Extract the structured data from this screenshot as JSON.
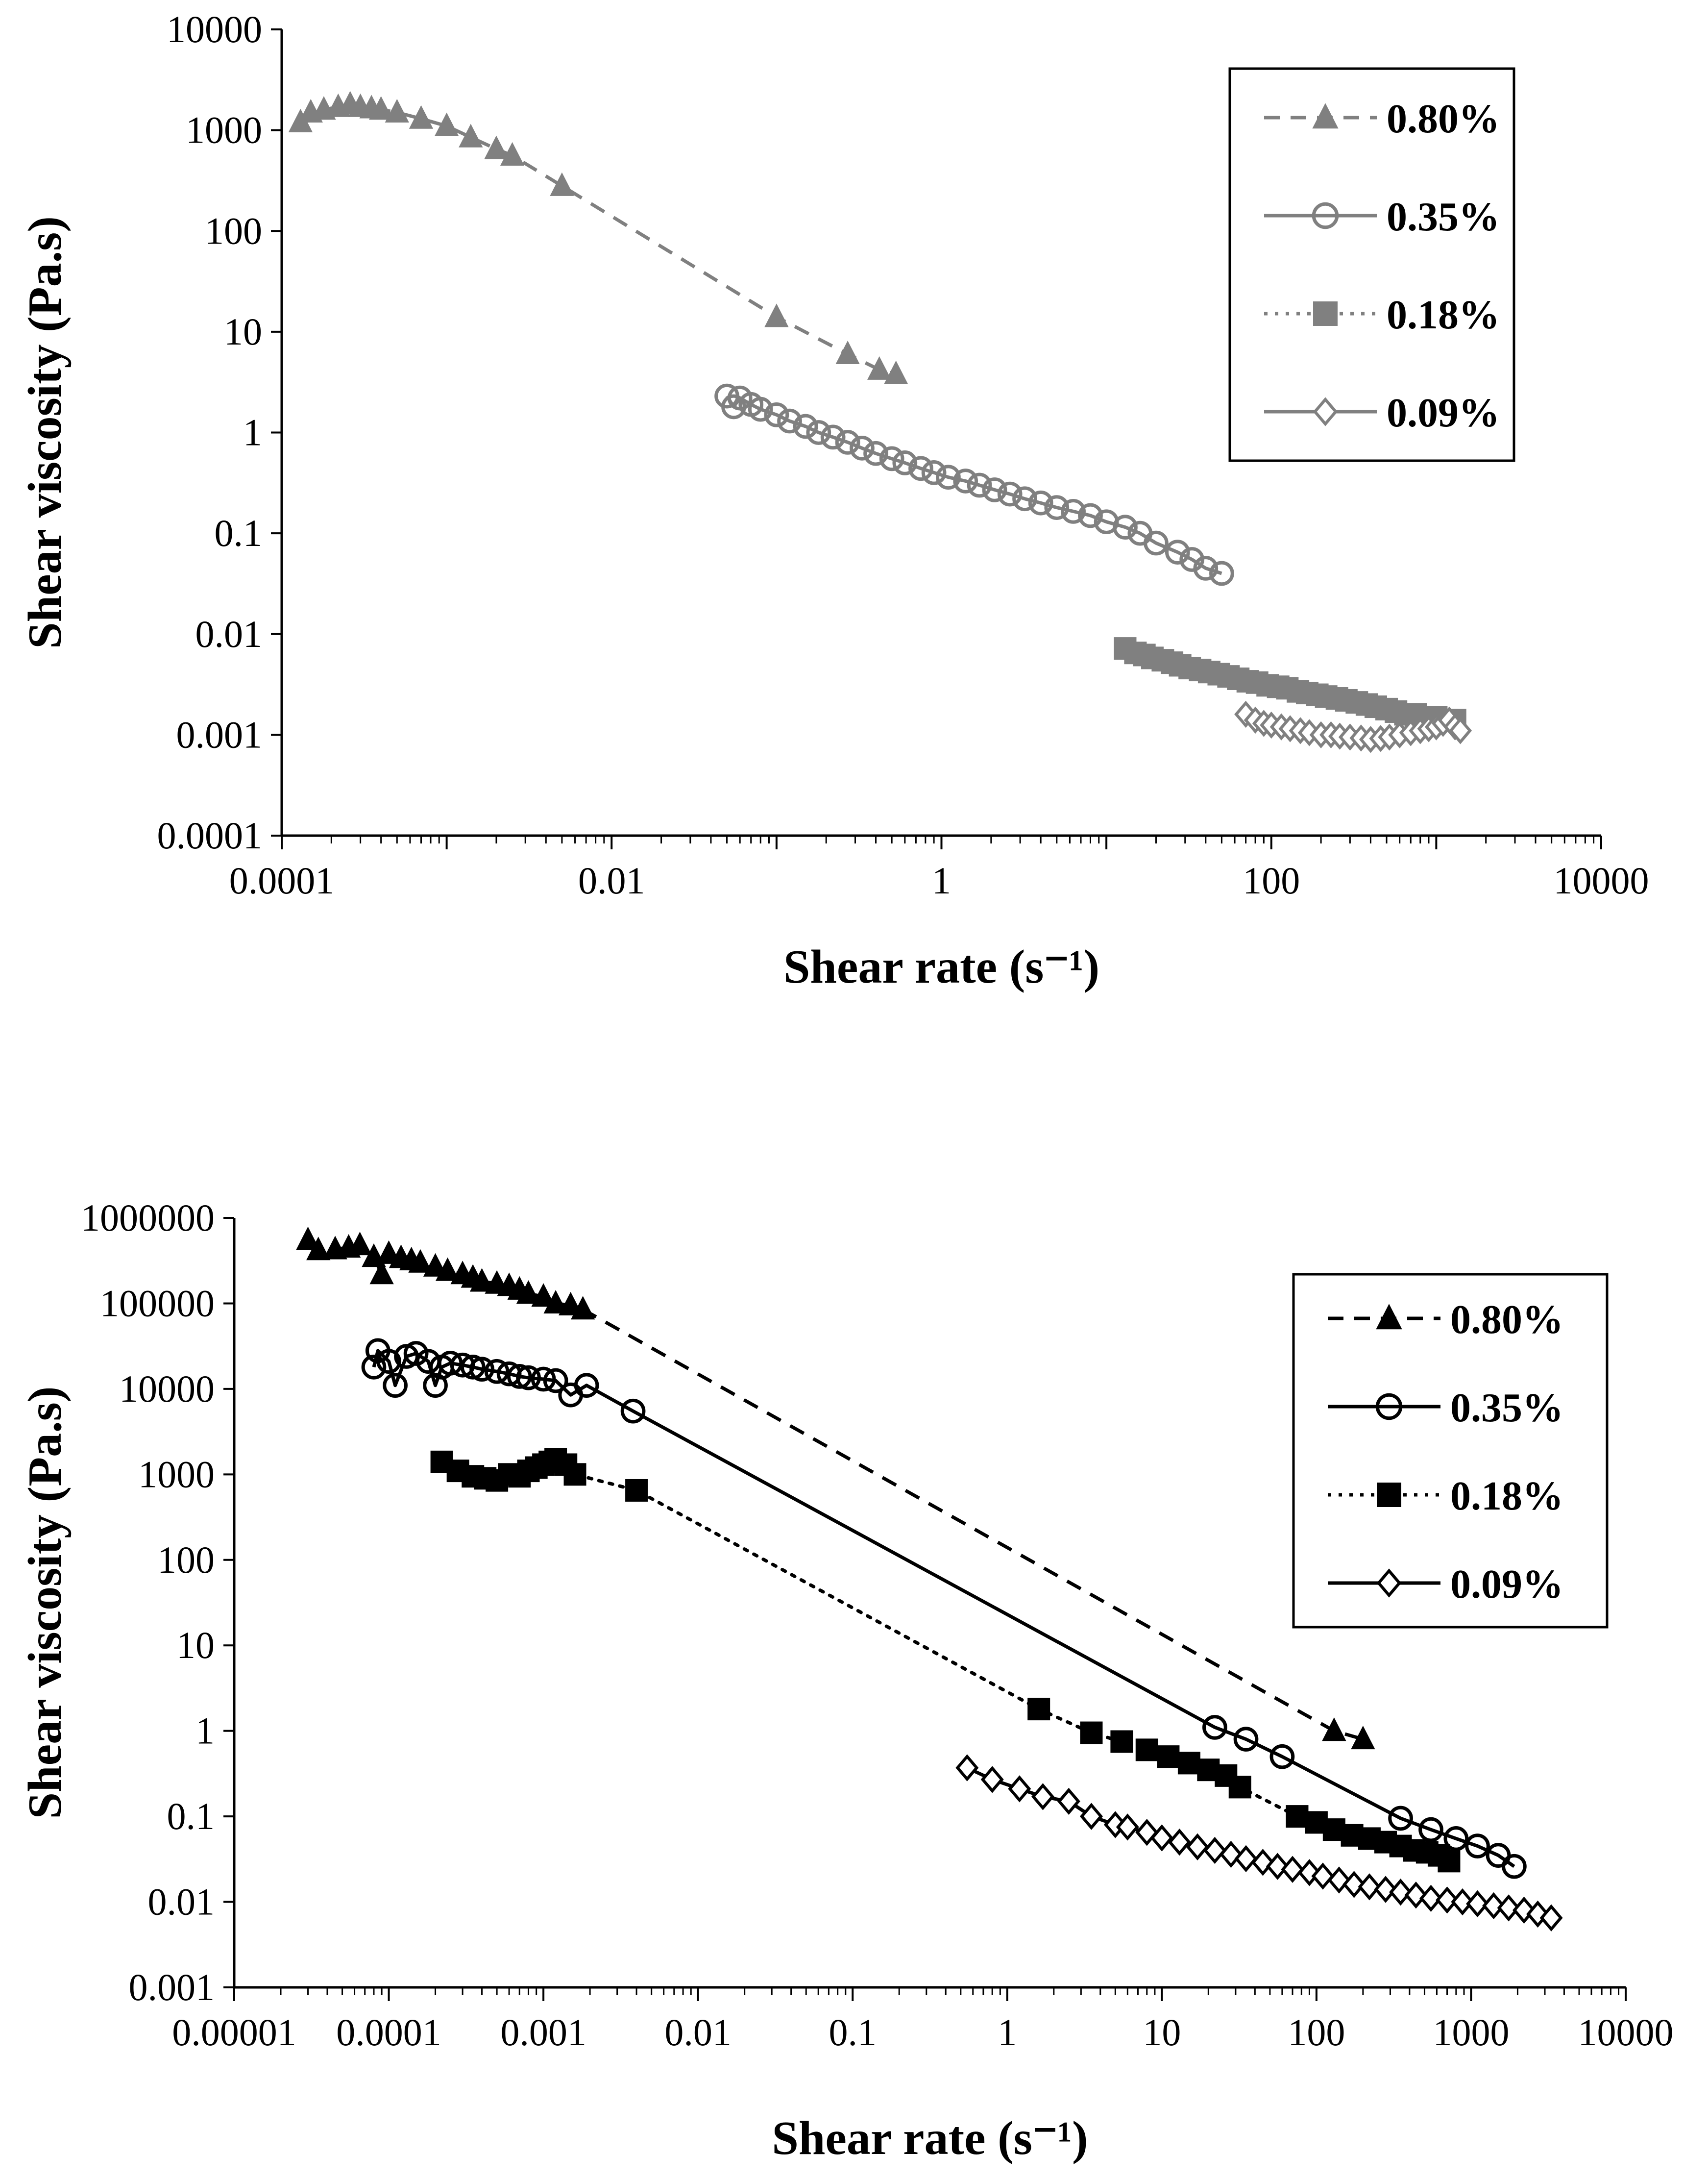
{
  "chart_data": [
    {
      "type": "scatter",
      "title": "",
      "xlabel": "Shear rate (s⁻¹)",
      "ylabel": "Shear viscosity (Pa.s)",
      "xscale": "log",
      "yscale": "log",
      "xlim": [
        0.0001,
        10000
      ],
      "ylim": [
        0.0001,
        10000
      ],
      "x_ticks": [
        "0.0001",
        "0.01",
        "1",
        "100",
        "10000"
      ],
      "y_ticks": [
        "0.0001",
        "0.001",
        "0.01",
        "0.1",
        "1",
        "10",
        "100",
        "1000",
        "10000"
      ],
      "legend_position": "top-right",
      "color": "#808080",
      "series": [
        {
          "name": "0.80%",
          "marker": "triangle",
          "line": "dashed",
          "x": [
            0.00013,
            0.00015,
            0.00018,
            0.00022,
            0.00026,
            0.0003,
            0.00035,
            0.0004,
            0.0005,
            0.0007,
            0.001,
            0.0014,
            0.002,
            0.0025,
            0.005,
            0.1,
            0.27,
            0.42,
            0.53
          ],
          "y": [
            1200,
            1500,
            1600,
            1700,
            1800,
            1700,
            1650,
            1600,
            1500,
            1300,
            1100,
            850,
            650,
            560,
            280,
            14,
            6,
            4.2,
            3.8
          ]
        },
        {
          "name": "0.35%",
          "marker": "circle-open",
          "line": "solid",
          "x": [
            0.05,
            0.055,
            0.06,
            0.07,
            0.08,
            0.1,
            0.12,
            0.15,
            0.18,
            0.22,
            0.27,
            0.33,
            0.4,
            0.5,
            0.6,
            0.75,
            0.9,
            1.1,
            1.4,
            1.7,
            2.1,
            2.6,
            3.2,
            4,
            5,
            6.3,
            8,
            10,
            13,
            16,
            20,
            27,
            33,
            40,
            50
          ],
          "y": [
            2.3,
            1.8,
            2.2,
            1.9,
            1.7,
            1.5,
            1.3,
            1.15,
            1.0,
            0.9,
            0.8,
            0.7,
            0.62,
            0.55,
            0.5,
            0.44,
            0.4,
            0.36,
            0.33,
            0.3,
            0.27,
            0.245,
            0.22,
            0.2,
            0.18,
            0.165,
            0.15,
            0.13,
            0.115,
            0.1,
            0.08,
            0.065,
            0.055,
            0.045,
            0.04
          ]
        },
        {
          "name": "0.18%",
          "marker": "square",
          "line": "dotted",
          "x": [
            13,
            15,
            17,
            19,
            22,
            25,
            28,
            32,
            37,
            42,
            48,
            55,
            63,
            72,
            82,
            95,
            110,
            125,
            145,
            165,
            190,
            215,
            250,
            285,
            330,
            380,
            430,
            500,
            570,
            650,
            750,
            850,
            1000,
            1150,
            1300
          ],
          "y": [
            0.0072,
            0.0065,
            0.0062,
            0.0058,
            0.0055,
            0.0052,
            0.0049,
            0.0046,
            0.0044,
            0.0042,
            0.004,
            0.0038,
            0.0036,
            0.0034,
            0.0033,
            0.0031,
            0.003,
            0.0029,
            0.0027,
            0.0026,
            0.0025,
            0.0024,
            0.0023,
            0.0022,
            0.0021,
            0.002,
            0.0019,
            0.0018,
            0.0017,
            0.0016,
            0.0016,
            0.0015,
            0.0015,
            0.0014,
            0.0014
          ]
        },
        {
          "name": "0.09%",
          "marker": "diamond-open",
          "line": "solid",
          "x": [
            70,
            80,
            90,
            100,
            115,
            130,
            150,
            170,
            200,
            230,
            260,
            300,
            350,
            400,
            460,
            520,
            600,
            700,
            800,
            900,
            1000,
            1100,
            1200,
            1300,
            1400
          ],
          "y": [
            0.0016,
            0.0014,
            0.0013,
            0.00125,
            0.0012,
            0.00115,
            0.0011,
            0.00105,
            0.001,
            0.001,
            0.00097,
            0.00095,
            0.00093,
            0.0009,
            0.00092,
            0.00095,
            0.001,
            0.00105,
            0.0011,
            0.00115,
            0.0012,
            0.0013,
            0.0014,
            0.0012,
            0.0011
          ]
        }
      ]
    },
    {
      "type": "scatter",
      "title": "",
      "xlabel": "Shear rate (s⁻¹)",
      "ylabel": "Shear viscosity (Pa.s)",
      "xscale": "log",
      "yscale": "log",
      "xlim": [
        1e-05,
        10000
      ],
      "ylim": [
        0.001,
        1000000
      ],
      "x_ticks": [
        "0.00001",
        "0.0001",
        "0.001",
        "0.01",
        "0.1",
        "1",
        "10",
        "100",
        "1000",
        "10000"
      ],
      "y_ticks": [
        "0.001",
        "0.01",
        "0.1",
        "1",
        "10",
        "100",
        "1000",
        "10000",
        "100000",
        "1000000"
      ],
      "legend_position": "top-right",
      "color": "#000000",
      "series": [
        {
          "name": "0.80%",
          "marker": "triangle",
          "line": "dashed",
          "x": [
            3e-05,
            3.5e-05,
            4.5e-05,
            5.5e-05,
            6.5e-05,
            8e-05,
            9e-05,
            0.0001,
            0.00012,
            0.00014,
            0.00016,
            0.0002,
            0.00024,
            0.0003,
            0.00035,
            0.0004,
            0.0005,
            0.0006,
            0.0007,
            0.0008,
            0.001,
            0.0012,
            0.0015,
            0.0018,
            130,
            200
          ],
          "y": [
            550000,
            420000,
            430000,
            450000,
            480000,
            350000,
            220000,
            380000,
            340000,
            320000,
            300000,
            270000,
            240000,
            220000,
            200000,
            180000,
            170000,
            160000,
            145000,
            130000,
            120000,
            100000,
            95000,
            85000,
            1.0,
            0.8
          ]
        },
        {
          "name": "0.35%",
          "marker": "circle-open",
          "line": "solid",
          "x": [
            8e-05,
            8.5e-05,
            0.0001,
            0.00011,
            0.00013,
            0.00015,
            0.00018,
            0.0002,
            0.00022,
            0.00025,
            0.0003,
            0.00035,
            0.0004,
            0.0005,
            0.0006,
            0.0007,
            0.0008,
            0.001,
            0.0012,
            0.0015,
            0.0019,
            0.0038,
            22,
            35,
            60,
            350,
            550,
            800,
            1100,
            1500,
            1900
          ],
          "y": [
            18000,
            28000,
            21000,
            11000,
            24000,
            26000,
            21000,
            11000,
            18000,
            20000,
            19000,
            18000,
            17000,
            16000,
            15000,
            14000,
            13500,
            13000,
            12500,
            8500,
            11000,
            5500,
            1.1,
            0.8,
            0.5,
            0.095,
            0.07,
            0.055,
            0.045,
            0.035,
            0.026
          ]
        },
        {
          "name": "0.18%",
          "marker": "square",
          "line": "dotted",
          "x": [
            0.00022,
            0.00028,
            0.00035,
            0.00042,
            0.0005,
            0.0006,
            0.0007,
            0.0008,
            0.0009,
            0.001,
            0.0011,
            0.0012,
            0.0014,
            0.0016,
            0.004,
            1.6,
            3.5,
            5.5,
            8,
            11,
            15,
            20,
            26,
            32,
            75,
            100,
            130,
            170,
            220,
            280,
            350,
            430,
            520,
            620,
            720
          ],
          "y": [
            1400,
            1100,
            950,
            900,
            850,
            1000,
            950,
            1100,
            1200,
            1300,
            1400,
            1500,
            1300,
            1000,
            650,
            1.8,
            0.95,
            0.75,
            0.6,
            0.5,
            0.42,
            0.35,
            0.3,
            0.22,
            0.1,
            0.085,
            0.07,
            0.06,
            0.055,
            0.05,
            0.045,
            0.04,
            0.038,
            0.035,
            0.03
          ]
        },
        {
          "name": "0.09%",
          "marker": "diamond-open",
          "line": "solid",
          "x": [
            0.55,
            0.8,
            1.2,
            1.7,
            2.5,
            3.5,
            5,
            6,
            8,
            10,
            13,
            17,
            22,
            28,
            35,
            45,
            56,
            70,
            90,
            110,
            140,
            175,
            220,
            280,
            350,
            440,
            550,
            700,
            880,
            1100,
            1400,
            1750,
            2200,
            2700,
            3300
          ],
          "y": [
            0.37,
            0.27,
            0.21,
            0.17,
            0.15,
            0.1,
            0.08,
            0.075,
            0.065,
            0.056,
            0.05,
            0.044,
            0.04,
            0.036,
            0.032,
            0.029,
            0.026,
            0.024,
            0.022,
            0.02,
            0.018,
            0.016,
            0.015,
            0.014,
            0.013,
            0.012,
            0.011,
            0.0105,
            0.01,
            0.0095,
            0.009,
            0.0085,
            0.008,
            0.0072,
            0.0065
          ]
        }
      ]
    }
  ]
}
